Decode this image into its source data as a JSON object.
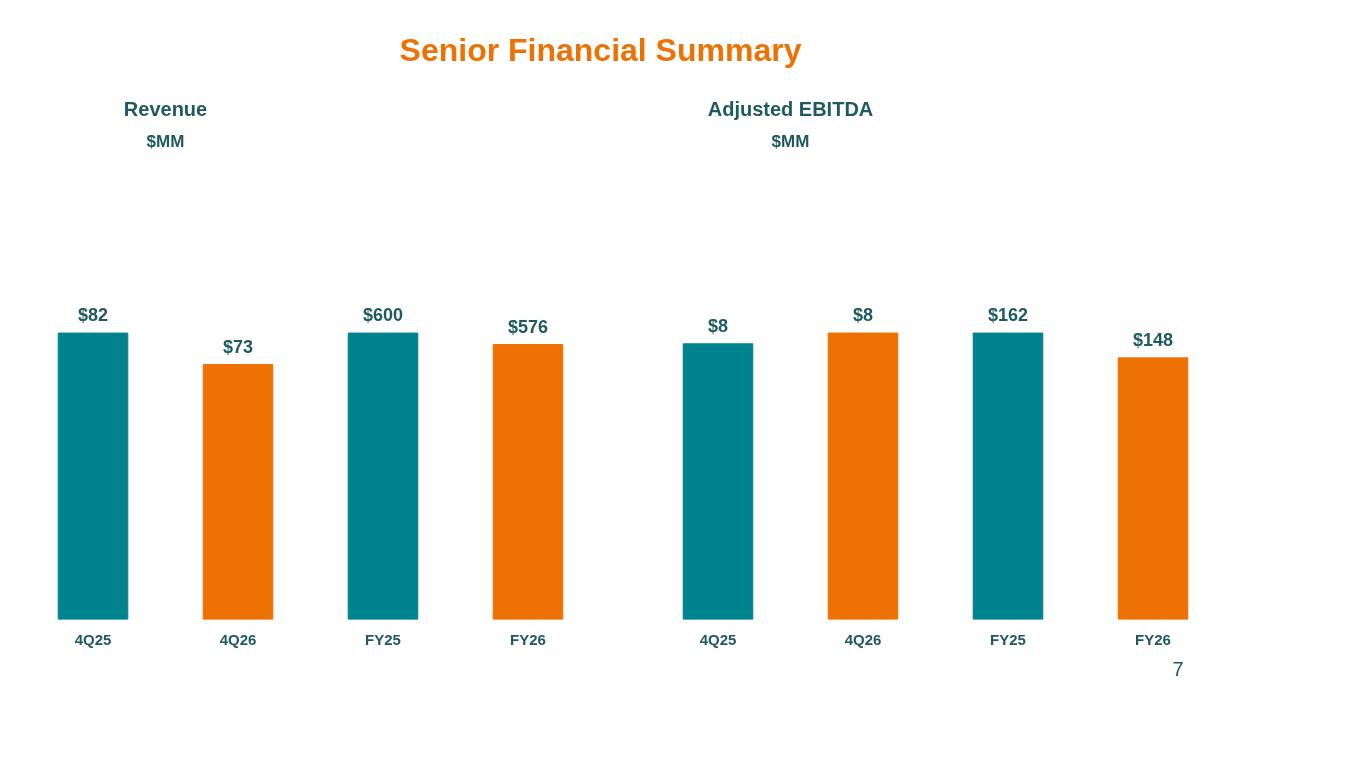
{
  "chart_data": [
    {
      "type": "other",
      "title": "Senior Financial Summary",
      "annotations": [
        "7"
      ]
    },
    {
      "type": "bar",
      "title": "Revenue",
      "subtitle": "$MM",
      "categories": [
        "4Q25",
        "4Q26"
      ],
      "values": [
        82,
        73
      ],
      "colors": [
        "#00838f",
        "#ee7203"
      ],
      "value_labels": [
        "$82",
        "$73"
      ],
      "grid": false
    },
    {
      "type": "bar",
      "categories": [
        "FY25",
        "FY26"
      ],
      "values": [
        600,
        576
      ],
      "colors": [
        "#00838f",
        "#ee7203"
      ],
      "value_labels": [
        "$600",
        "$576"
      ],
      "grid": false
    },
    {
      "type": "bar",
      "title": "Adjusted EBITDA",
      "subtitle": "$MM",
      "categories": [
        "4Q25",
        "4Q26"
      ],
      "values": [
        7.7,
        8.0
      ],
      "colors": [
        "#00838f",
        "#ee7203"
      ],
      "value_labels": [
        "$8",
        "$8"
      ],
      "grid": false
    },
    {
      "type": "bar",
      "categories": [
        "FY25",
        "FY26"
      ],
      "values": [
        162,
        148
      ],
      "colors": [
        "#00838f",
        "#ee7203"
      ],
      "value_labels": [
        "$162",
        "$148"
      ],
      "grid": false
    }
  ]
}
